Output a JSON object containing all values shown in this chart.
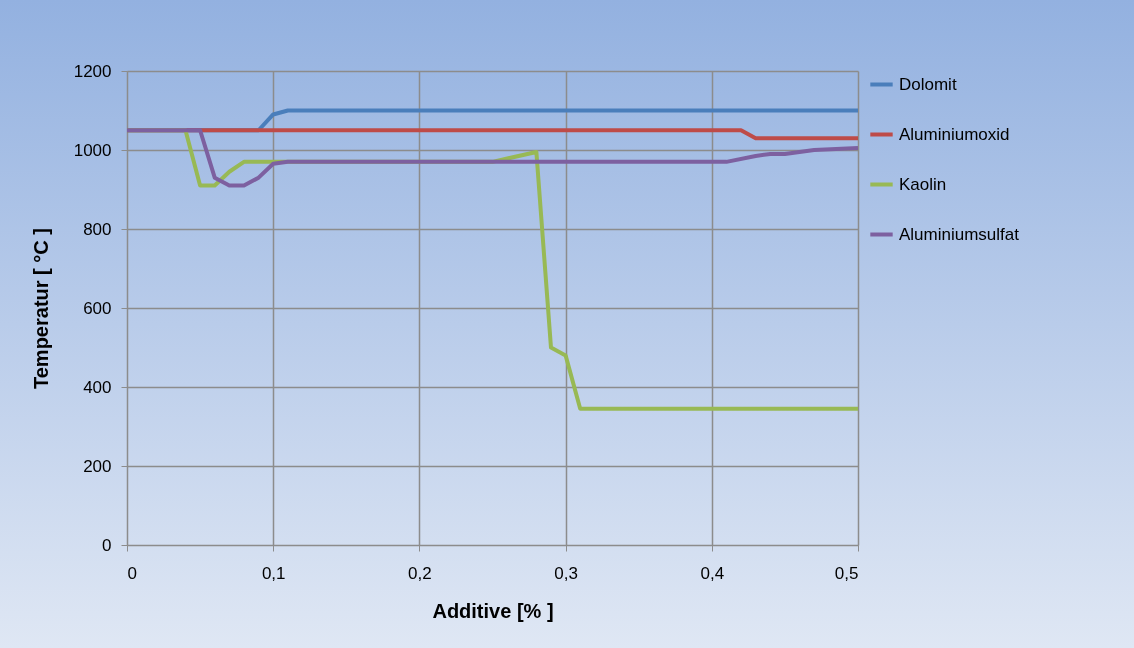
{
  "chart_data": {
    "type": "line",
    "xlabel": "Additive [% ]",
    "ylabel": "Temperatur  [ °C ]",
    "xlim": [
      0,
      0.5
    ],
    "ylim": [
      0,
      1200
    ],
    "xticks": [
      {
        "value": 0,
        "label": "0"
      },
      {
        "value": 0.1,
        "label": "0,1"
      },
      {
        "value": 0.2,
        "label": "0,2"
      },
      {
        "value": 0.3,
        "label": "0,3"
      },
      {
        "value": 0.4,
        "label": "0,4"
      },
      {
        "value": 0.5,
        "label": "0,5"
      }
    ],
    "yticks": [
      0,
      200,
      400,
      600,
      800,
      1000,
      1200
    ],
    "grid": true,
    "legend": "right",
    "marker": "none",
    "line_style": "solid",
    "series": [
      {
        "name": "Dolomit",
        "color": "#4a7ebb",
        "x": [
          0,
          0.09,
          0.1,
          0.11,
          0.5
        ],
        "values": [
          1050,
          1050,
          1090,
          1100,
          1100
        ]
      },
      {
        "name": "Aluminiumoxid",
        "color": "#be4b48",
        "x": [
          0,
          0.42,
          0.43,
          0.5
        ],
        "values": [
          1050,
          1050,
          1030,
          1030
        ]
      },
      {
        "name": "Kaolin",
        "color": "#98b954",
        "x": [
          0,
          0.04,
          0.05,
          0.06,
          0.07,
          0.08,
          0.25,
          0.28,
          0.29,
          0.3,
          0.31,
          0.5
        ],
        "values": [
          1050,
          1050,
          910,
          910,
          945,
          970,
          970,
          995,
          500,
          480,
          345,
          345
        ]
      },
      {
        "name": "Aluminiumsulfat",
        "color": "#7d60a0",
        "x": [
          0,
          0.05,
          0.06,
          0.07,
          0.08,
          0.09,
          0.1,
          0.11,
          0.41,
          0.43,
          0.44,
          0.45,
          0.47,
          0.5
        ],
        "values": [
          1050,
          1050,
          930,
          910,
          910,
          930,
          965,
          970,
          970,
          985,
          990,
          990,
          1000,
          1005
        ]
      }
    ]
  }
}
